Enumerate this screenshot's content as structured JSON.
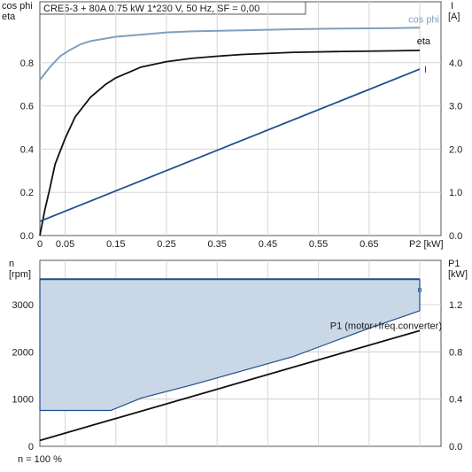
{
  "colors": {
    "cos_phi": "#7f9fbf",
    "eta": "#111111",
    "current": "#1f4e8c",
    "n_fill": "#c9d7e6",
    "n_line": "#1f4e8c",
    "p1": "#111111",
    "grid": "#d6d6d6"
  },
  "chart_data": [
    {
      "type": "line",
      "title": "CRE5-3 + 80A   0.75 kW   1*230 V, 50 Hz, SF = 0,00",
      "xlabel": "P2 [kW]",
      "ylabel_left": [
        "cos phi",
        "eta"
      ],
      "ylabel_right": [
        "I",
        "[A]"
      ],
      "xlim": [
        0,
        0.8
      ],
      "ylim_left": [
        0,
        1.0
      ],
      "ylim_right": [
        0,
        5.0
      ],
      "x_ticks": [
        "0",
        "0.05",
        "0.15",
        "0.25",
        "0.35",
        "0.45",
        "0.55",
        "0.65"
      ],
      "y_ticks_left": [
        "0.0",
        "0.2",
        "0.4",
        "0.6",
        "0.8"
      ],
      "y_ticks_right": [
        "0.0",
        "1.0",
        "2.0",
        "3.0",
        "4.0"
      ],
      "series": [
        {
          "name": "cos phi",
          "axis": "left",
          "x": [
            0,
            0.02,
            0.04,
            0.06,
            0.08,
            0.1,
            0.15,
            0.2,
            0.25,
            0.3,
            0.4,
            0.5,
            0.6,
            0.7,
            0.75
          ],
          "y": [
            0.72,
            0.78,
            0.83,
            0.86,
            0.885,
            0.9,
            0.92,
            0.93,
            0.94,
            0.945,
            0.95,
            0.955,
            0.958,
            0.96,
            0.962
          ]
        },
        {
          "name": "eta",
          "axis": "left",
          "x": [
            0.0,
            0.01,
            0.02,
            0.03,
            0.05,
            0.07,
            0.1,
            0.13,
            0.15,
            0.2,
            0.25,
            0.3,
            0.35,
            0.4,
            0.5,
            0.6,
            0.7,
            0.75
          ],
          "y": [
            0.0,
            0.12,
            0.22,
            0.33,
            0.45,
            0.55,
            0.64,
            0.7,
            0.73,
            0.78,
            0.805,
            0.82,
            0.83,
            0.838,
            0.848,
            0.852,
            0.855,
            0.857
          ]
        },
        {
          "name": "I",
          "axis": "right",
          "x": [
            0,
            0.75
          ],
          "y": [
            0.33,
            3.85
          ]
        }
      ]
    },
    {
      "type": "area",
      "xlim": [
        0,
        0.8
      ],
      "ylabel_left": [
        "n",
        "[rpm]"
      ],
      "ylabel_right": [
        "P1",
        "[kW]"
      ],
      "ylim_left": [
        0,
        3800
      ],
      "ylim_right": [
        0,
        1.7
      ],
      "y_ticks_left": [
        "0",
        "1000",
        "2000",
        "3000"
      ],
      "y_ticks_right": [
        "0.0",
        "0.4",
        "0.8",
        "1.2"
      ],
      "footnote": "n = 100 %",
      "series": [
        {
          "name": "n",
          "axis": "left",
          "upper": {
            "x": [
              0,
              0.75
            ],
            "y": [
              3540,
              3540
            ]
          },
          "lower": {
            "x": [
              0,
              0.14,
              0.2,
              0.3,
              0.4,
              0.5,
              0.55,
              0.65,
              0.75
            ],
            "y": [
              760,
              760,
              1020,
              1300,
              1600,
              1900,
              2100,
              2500,
              2870
            ]
          },
          "end_marker": {
            "x": 0.75,
            "y": 3320
          }
        },
        {
          "name": "P1 (motor+freq.converter)",
          "axis": "right",
          "x": [
            0,
            0.75
          ],
          "y": [
            0.05,
            0.98
          ]
        }
      ]
    }
  ]
}
